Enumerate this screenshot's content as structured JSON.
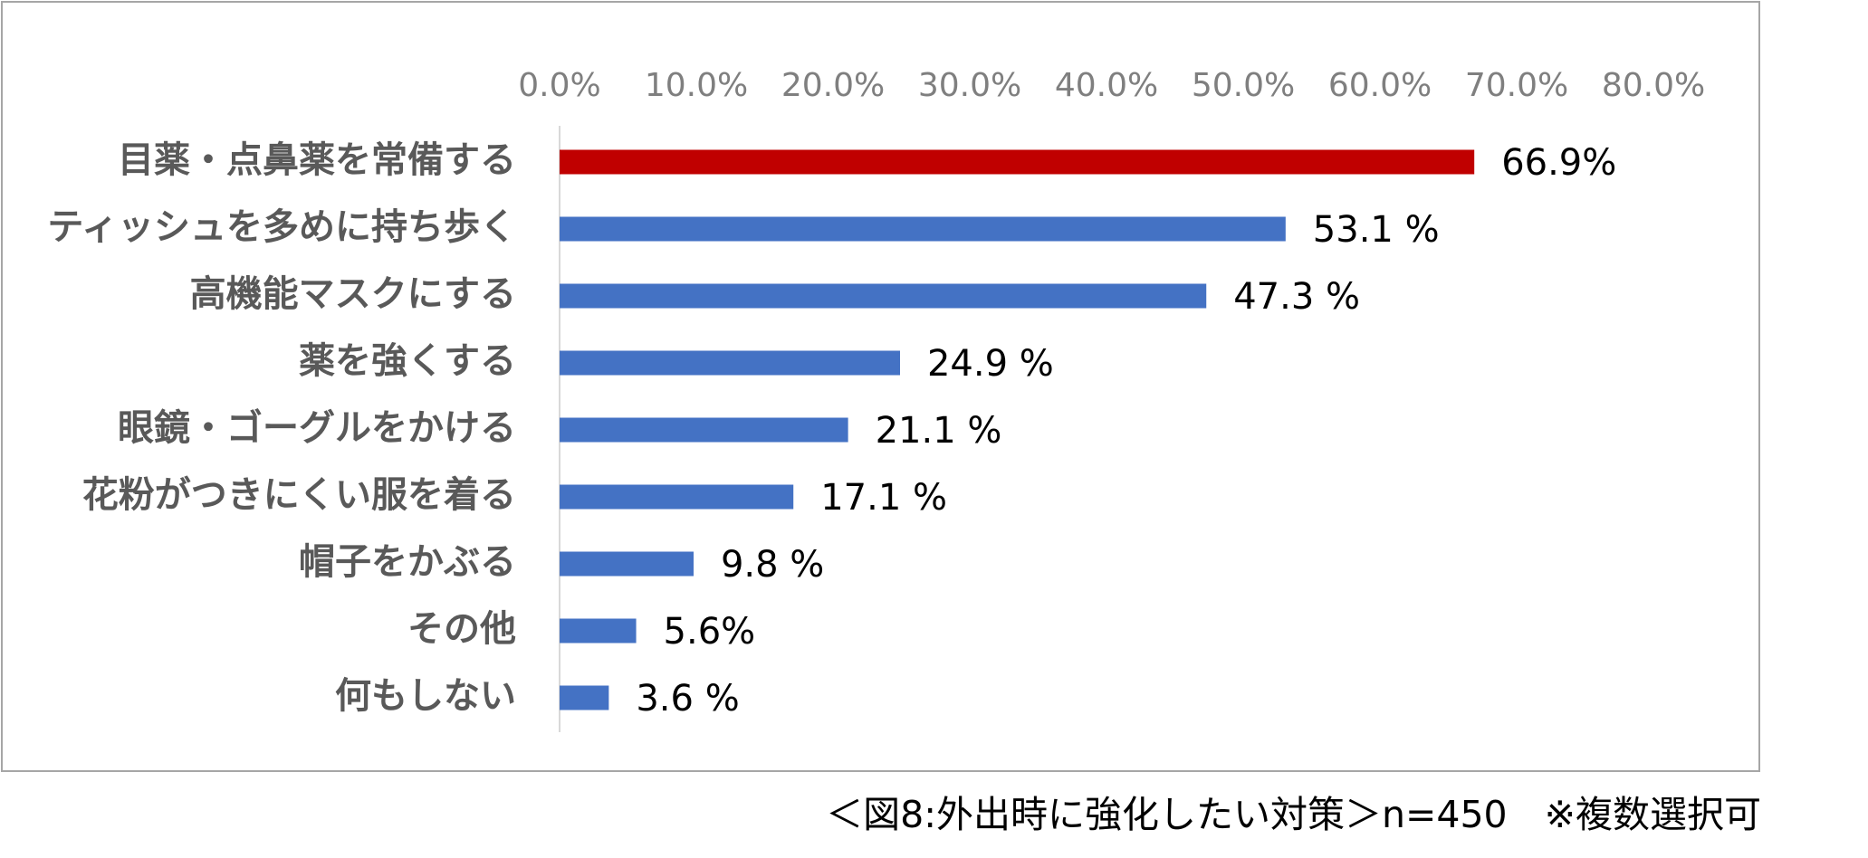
{
  "chart_data": {
    "type": "bar",
    "orientation": "horizontal",
    "categories": [
      "目薬・点鼻薬を常備する",
      "ティッシュを多めに持ち歩く",
      "高機能マスクにする",
      "薬を強くする",
      "眼鏡・ゴーグルをかける",
      "花粉がつきにくい服を着る",
      "帽子をかぶる",
      "その他",
      "何もしない"
    ],
    "values": [
      66.9,
      53.1,
      47.3,
      24.9,
      21.1,
      17.1,
      9.8,
      5.6,
      3.6
    ],
    "value_labels": [
      "66.9%",
      "53.1 %",
      "47.3 %",
      "24.9 %",
      "21.1 %",
      "17.1 %",
      "9.8 %",
      "5.6%",
      "3.6 %"
    ],
    "xlim": [
      0,
      80
    ],
    "x_ticks": [
      "0.0%",
      "10.0%",
      "20.0%",
      "30.0%",
      "40.0%",
      "50.0%",
      "60.0%",
      "70.0%",
      "80.0%"
    ],
    "x_axis_position": "top",
    "grid": false,
    "colors": {
      "highlight": "#c00000",
      "default": "#4472c4"
    },
    "highlight_index": 0
  },
  "caption": "＜図8:外出時に強化したい対策＞n=450　※複数選択可"
}
